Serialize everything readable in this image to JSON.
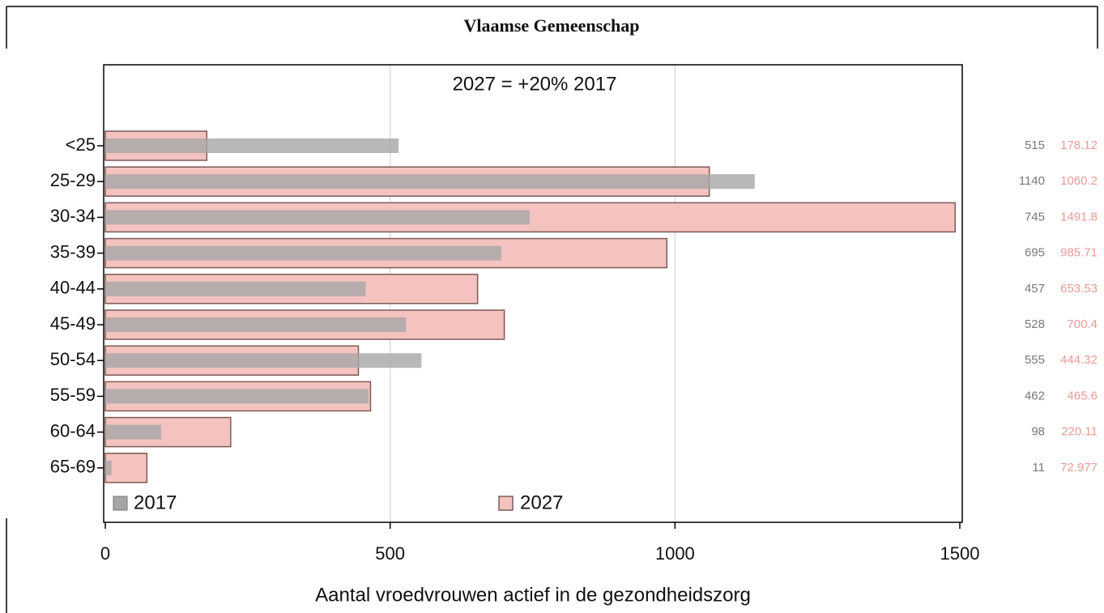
{
  "chart_data": {
    "type": "bar",
    "orientation": "horizontal",
    "title": "Vlaamse Gemeenschap",
    "annotation": "2027 =   +20% 2017",
    "x_label": "Aantal vroedvrouwen actief in de gezondheidszorg",
    "categories": [
      "<25",
      "25-29",
      "30-34",
      "35-39",
      "40-44",
      "45-49",
      "50-54",
      "55-59",
      "60-64",
      "65-69"
    ],
    "series": [
      {
        "name": "2017",
        "color": "#a6a6a6",
        "values": [
          515,
          1140,
          745,
          695,
          457,
          528,
          555,
          462,
          98,
          11
        ]
      },
      {
        "name": "2027",
        "color": "#f4c3bf",
        "values": [
          178.12,
          1060.2,
          1491.8,
          985.71,
          653.53,
          700.4,
          444.32,
          465.6,
          220.11,
          72.977
        ]
      }
    ],
    "xlim": [
      0,
      1500
    ],
    "xticks": [
      0,
      500,
      1000,
      1500
    ],
    "grid": true,
    "legend": "bottom"
  }
}
